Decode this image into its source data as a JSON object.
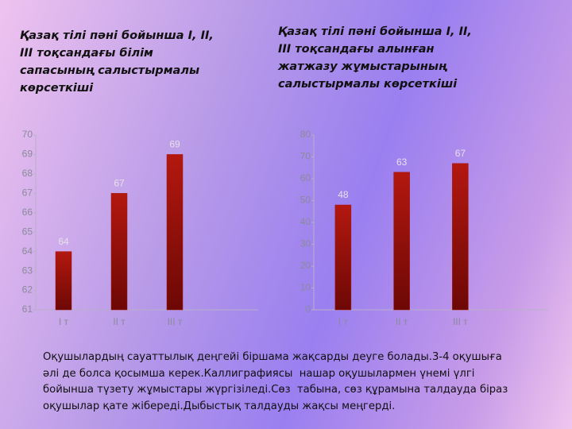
{
  "chart_data": [
    {
      "type": "bar",
      "title": [
        "Қазақ тілі пәні бойынша I, II,",
        " III тоқсандағы   білім",
        "сапасының   салыстырмалы",
        "көрсеткіші"
      ],
      "categories": [
        "I т",
        "II т",
        "III т",
        null
      ],
      "values": [
        64,
        67,
        69,
        null
      ],
      "color": "#a3120c",
      "ylim": [
        61,
        70
      ],
      "yticks": [
        61,
        62,
        63,
        64,
        65,
        66,
        67,
        68,
        69,
        70
      ]
    },
    {
      "type": "bar",
      "title": [
        "Қазақ тілі пәні бойынша I, II,",
        " III тоқсандағы алынған",
        " жатжазу жұмыстарының",
        " салыстырмалы көрсеткіші"
      ],
      "categories": [
        "I т",
        "II т",
        "III т",
        null
      ],
      "values": [
        48,
        63,
        67,
        null
      ],
      "color": "#a3120c",
      "ylim": [
        0,
        80
      ],
      "yticks": [
        0,
        10,
        20,
        30,
        40,
        50,
        60,
        70,
        80
      ]
    }
  ],
  "text": {
    "lines": [
      "Оқушылардың сауаттылық деңгейі біршама жақсарды деуге болады.3-4 оқушыға",
      "әлі де болса қосымша керек.Каллиграфиясы  нашар оқушылармен үнемі үлгі",
      "бойынша түзету жұмыстары жүргізіледі.Сөз  табына, сөз құрамына талдауда біраз",
      "оқушылар қате жібереді.Дыбыстық талдауды жақсы меңгерді."
    ]
  }
}
